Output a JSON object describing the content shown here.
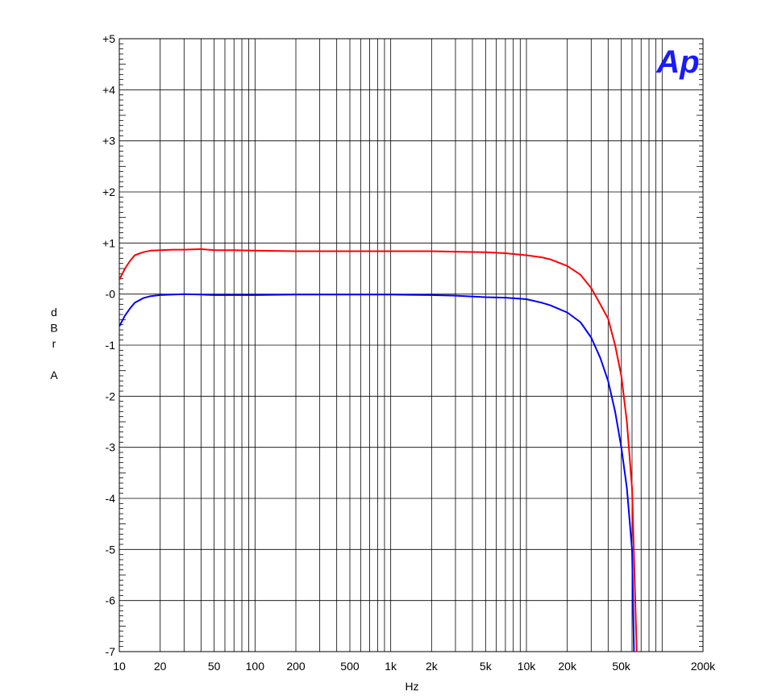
{
  "chart_data": {
    "type": "line",
    "title": "",
    "xlabel": "Hz",
    "ylabel": "dBr A",
    "ylabel_lines": [
      "d",
      "B",
      "r",
      "",
      "A"
    ],
    "x_scale": "log",
    "xlim": [
      10,
      200000
    ],
    "ylim": [
      -7,
      5
    ],
    "grid": true,
    "logo": "Ap",
    "x_ticks": [
      {
        "value": 10,
        "label": "10"
      },
      {
        "value": 20,
        "label": "20"
      },
      {
        "value": 50,
        "label": "50"
      },
      {
        "value": 100,
        "label": "100"
      },
      {
        "value": 200,
        "label": "200"
      },
      {
        "value": 500,
        "label": "500"
      },
      {
        "value": 1000,
        "label": "1k"
      },
      {
        "value": 2000,
        "label": "2k"
      },
      {
        "value": 5000,
        "label": "5k"
      },
      {
        "value": 10000,
        "label": "10k"
      },
      {
        "value": 20000,
        "label": "20k"
      },
      {
        "value": 50000,
        "label": "50k"
      },
      {
        "value": 200000,
        "label": "200k"
      }
    ],
    "y_ticks": [
      {
        "value": 5,
        "label": "+5"
      },
      {
        "value": 4,
        "label": "+4"
      },
      {
        "value": 3,
        "label": "+3"
      },
      {
        "value": 2,
        "label": "+2"
      },
      {
        "value": 1,
        "label": "+1"
      },
      {
        "value": 0,
        "label": "-0"
      },
      {
        "value": -1,
        "label": "-1"
      },
      {
        "value": -2,
        "label": "-2"
      },
      {
        "value": -3,
        "label": "-3"
      },
      {
        "value": -4,
        "label": "-4"
      },
      {
        "value": -5,
        "label": "-5"
      },
      {
        "value": -6,
        "label": "-6"
      },
      {
        "value": -7,
        "label": "-7"
      }
    ],
    "series": [
      {
        "color": "#ff0000",
        "x": [
          10,
          11,
          12,
          13,
          15,
          17,
          20,
          25,
          30,
          40,
          50,
          70,
          100,
          200,
          300,
          500,
          700,
          1000,
          2000,
          3000,
          5000,
          7000,
          10000,
          13000,
          15000,
          20000,
          25000,
          30000,
          35000,
          40000,
          45000,
          50000,
          55000,
          60000,
          65000
        ],
        "y": [
          0.28,
          0.5,
          0.65,
          0.76,
          0.82,
          0.85,
          0.86,
          0.87,
          0.87,
          0.88,
          0.86,
          0.86,
          0.85,
          0.84,
          0.84,
          0.84,
          0.84,
          0.84,
          0.84,
          0.83,
          0.82,
          0.8,
          0.76,
          0.72,
          0.68,
          0.55,
          0.38,
          0.12,
          -0.2,
          -0.48,
          -1.0,
          -1.6,
          -2.5,
          -3.8,
          -7.0
        ]
      },
      {
        "color": "#0000ff",
        "x": [
          10,
          11,
          12,
          13,
          15,
          17,
          20,
          25,
          30,
          40,
          50,
          70,
          100,
          200,
          300,
          500,
          700,
          1000,
          2000,
          3000,
          5000,
          7000,
          10000,
          13000,
          15000,
          20000,
          25000,
          30000,
          35000,
          40000,
          45000,
          50000,
          55000,
          60000,
          62000
        ],
        "y": [
          -0.63,
          -0.42,
          -0.28,
          -0.17,
          -0.08,
          -0.04,
          -0.02,
          -0.01,
          0.0,
          -0.01,
          -0.02,
          -0.02,
          -0.02,
          -0.01,
          -0.01,
          -0.01,
          -0.01,
          -0.01,
          -0.02,
          -0.03,
          -0.06,
          -0.07,
          -0.1,
          -0.17,
          -0.22,
          -0.36,
          -0.55,
          -0.85,
          -1.25,
          -1.7,
          -2.3,
          -3.0,
          -3.8,
          -5.0,
          -7.0
        ]
      }
    ]
  }
}
